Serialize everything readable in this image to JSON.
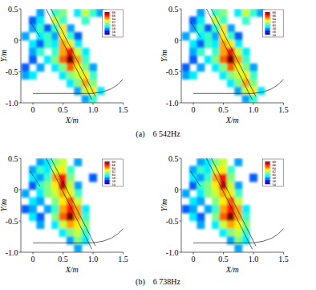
{
  "chart_data": [
    {
      "type": "heatmap",
      "x_label": "X/m",
      "y_label": "Y/m",
      "xlim": [
        -0.2,
        1.5
      ],
      "ylim": [
        -1.0,
        0.5
      ],
      "xticks": [
        0,
        0.5,
        {
          "value": 1.0,
          "label": "1.0"
        },
        1.5
      ],
      "yticks": [
        0.5,
        0,
        -0.5,
        {
          "value": -1.0,
          "label": "-1.0"
        }
      ],
      "x": [
        -0.125,
        0,
        0.125,
        0.25,
        0.375,
        0.5,
        0.625,
        0.75,
        0.875,
        1.0,
        1.125,
        1.25,
        1.375
      ],
      "y": [
        0.4375,
        0.3125,
        0.1875,
        0.0625,
        -0.0625,
        -0.1875,
        -0.3125,
        -0.4375,
        -0.5625,
        -0.6875,
        -0.8125,
        -0.9375
      ],
      "cells": [
        [
          null,
          null,
          58,
          null,
          60,
          61,
          null,
          59,
          62,
          60,
          58,
          null,
          null
        ],
        [
          null,
          57,
          59,
          null,
          62,
          60,
          null,
          null,
          60,
          null,
          null,
          null,
          null
        ],
        [
          null,
          58,
          60,
          57,
          60,
          63,
          58,
          null,
          null,
          null,
          null,
          null,
          null
        ],
        [
          58,
          null,
          59,
          60,
          58,
          63,
          60,
          57,
          null,
          null,
          null,
          null,
          null
        ],
        [
          null,
          59,
          57,
          60,
          59,
          64,
          63,
          59,
          null,
          null,
          null,
          null,
          null
        ],
        [
          null,
          58,
          60,
          null,
          60,
          64,
          66,
          62,
          59,
          null,
          null,
          null,
          null
        ],
        [
          null,
          57,
          null,
          59,
          61,
          65,
          68,
          64,
          60,
          null,
          null,
          null,
          null
        ],
        [
          57,
          null,
          58,
          null,
          59,
          61,
          65,
          63,
          61,
          58,
          null,
          null,
          null
        ],
        [
          58,
          59,
          null,
          null,
          null,
          59,
          61,
          62,
          63,
          60,
          null,
          null,
          null
        ],
        [
          null,
          null,
          null,
          null,
          null,
          null,
          59,
          61,
          64,
          61,
          null,
          null,
          null
        ],
        [
          null,
          null,
          null,
          null,
          null,
          null,
          null,
          58,
          62,
          63,
          59,
          null,
          null
        ],
        [
          null,
          null,
          null,
          null,
          null,
          null,
          null,
          null,
          58,
          60,
          null,
          null,
          null
        ]
      ],
      "colorbar": {
        "range": [
          54,
          68
        ],
        "ticks": [
          54,
          56,
          58,
          60,
          62,
          64,
          66,
          68
        ]
      }
    },
    {
      "type": "heatmap",
      "x_label": "X/m",
      "y_label": "Y/m",
      "xlim": [
        -0.2,
        1.5
      ],
      "ylim": [
        -1.0,
        0.5
      ],
      "xticks": [
        0,
        0.5,
        {
          "value": 1.0,
          "label": "1.0"
        },
        1.5
      ],
      "yticks": [
        0.5,
        0,
        -0.5,
        {
          "value": -1.0,
          "label": "-1.0"
        }
      ],
      "x": [
        -0.125,
        0,
        0.125,
        0.25,
        0.375,
        0.5,
        0.625,
        0.75,
        0.875,
        1.0,
        1.125,
        1.25,
        1.375
      ],
      "y": [
        0.4375,
        0.3125,
        0.1875,
        0.0625,
        -0.0625,
        -0.1875,
        -0.3125,
        -0.4375,
        -0.5625,
        -0.6875,
        -0.8125,
        -0.9375
      ],
      "cells": [
        [
          null,
          null,
          58,
          null,
          60,
          61,
          null,
          59,
          62,
          60,
          58,
          null,
          null
        ],
        [
          null,
          57,
          59,
          null,
          62,
          60,
          null,
          null,
          60,
          null,
          null,
          null,
          null
        ],
        [
          null,
          58,
          60,
          57,
          60,
          63,
          58,
          null,
          null,
          null,
          null,
          null,
          null
        ],
        [
          58,
          null,
          59,
          60,
          58,
          63,
          60,
          57,
          null,
          null,
          null,
          null,
          null
        ],
        [
          null,
          59,
          57,
          60,
          59,
          64,
          63,
          59,
          null,
          null,
          null,
          null,
          null
        ],
        [
          null,
          58,
          60,
          null,
          60,
          64,
          66,
          62,
          59,
          null,
          null,
          null,
          null
        ],
        [
          null,
          57,
          null,
          59,
          61,
          65,
          68,
          64,
          60,
          null,
          null,
          null,
          null
        ],
        [
          57,
          null,
          58,
          null,
          59,
          61,
          65,
          63,
          61,
          58,
          null,
          null,
          null
        ],
        [
          58,
          59,
          null,
          null,
          null,
          59,
          61,
          62,
          63,
          60,
          null,
          null,
          null
        ],
        [
          null,
          null,
          null,
          null,
          null,
          null,
          59,
          61,
          64,
          61,
          null,
          null,
          null
        ],
        [
          null,
          null,
          null,
          null,
          null,
          null,
          null,
          58,
          62,
          63,
          59,
          null,
          null
        ],
        [
          null,
          null,
          null,
          null,
          null,
          null,
          null,
          null,
          58,
          60,
          null,
          null,
          null
        ]
      ],
      "colorbar": {
        "range": [
          54,
          68
        ],
        "ticks": [
          54,
          56,
          58,
          60,
          62,
          64,
          66,
          68
        ]
      }
    },
    {
      "type": "heatmap",
      "x_label": "X/m",
      "y_label": "Y/m",
      "xlim": [
        -0.2,
        1.5
      ],
      "ylim": [
        -1.0,
        0.5
      ],
      "xticks": [
        0,
        0.5,
        {
          "value": 1.0,
          "label": "1.0"
        },
        1.5
      ],
      "yticks": [
        0.5,
        0,
        -0.5,
        {
          "value": -1.0,
          "label": "-1.0"
        }
      ],
      "x": [
        -0.125,
        0,
        0.125,
        0.25,
        0.375,
        0.5,
        0.625,
        0.75,
        0.875,
        1.0,
        1.125,
        1.25,
        1.375
      ],
      "y": [
        0.4375,
        0.3125,
        0.1875,
        0.0625,
        -0.0625,
        -0.1875,
        -0.3125,
        -0.4375,
        -0.5625,
        -0.6875,
        -0.8125,
        -0.9375
      ],
      "cells": [
        [
          null,
          null,
          58,
          59,
          61,
          62,
          null,
          58,
          null,
          null,
          null,
          null,
          null
        ],
        [
          null,
          58,
          60,
          59,
          62,
          63,
          60,
          null,
          null,
          null,
          null,
          null,
          null
        ],
        [
          null,
          59,
          58,
          60,
          64,
          66,
          61,
          null,
          null,
          57,
          null,
          null,
          null
        ],
        [
          null,
          57,
          60,
          61,
          63,
          67,
          62,
          58,
          null,
          null,
          null,
          null,
          null
        ],
        [
          58,
          null,
          59,
          61,
          62,
          64,
          63,
          60,
          null,
          null,
          null,
          null,
          null
        ],
        [
          null,
          59,
          58,
          null,
          61,
          63,
          65,
          62,
          null,
          null,
          null,
          null,
          null
        ],
        [
          57,
          58,
          null,
          58,
          60,
          64,
          66,
          64,
          59,
          null,
          null,
          null,
          null
        ],
        [
          null,
          59,
          57,
          null,
          61,
          65,
          68,
          64,
          60,
          null,
          null,
          null,
          null
        ],
        [
          null,
          null,
          58,
          null,
          59,
          62,
          64,
          63,
          61,
          null,
          null,
          null,
          null
        ],
        [
          null,
          null,
          null,
          null,
          null,
          59,
          61,
          62,
          60,
          null,
          null,
          null,
          null
        ],
        [
          null,
          null,
          null,
          null,
          null,
          null,
          58,
          61,
          59,
          null,
          null,
          null,
          null
        ],
        [
          null,
          null,
          null,
          null,
          null,
          null,
          null,
          58,
          null,
          null,
          null,
          null,
          null
        ]
      ],
      "colorbar": {
        "range": [
          54,
          68
        ],
        "ticks": [
          54,
          56,
          58,
          60,
          62,
          64,
          66,
          68
        ]
      }
    },
    {
      "type": "heatmap",
      "x_label": "X/m",
      "y_label": "Y/m",
      "xlim": [
        -0.2,
        1.5
      ],
      "ylim": [
        -1.0,
        0.5
      ],
      "xticks": [
        0,
        0.5,
        {
          "value": 1.0,
          "label": "1.0"
        },
        1.5
      ],
      "yticks": [
        0.5,
        0,
        -0.5,
        {
          "value": -1.0,
          "label": "-1.0"
        }
      ],
      "x": [
        -0.125,
        0,
        0.125,
        0.25,
        0.375,
        0.5,
        0.625,
        0.75,
        0.875,
        1.0,
        1.125,
        1.25,
        1.375
      ],
      "y": [
        0.4375,
        0.3125,
        0.1875,
        0.0625,
        -0.0625,
        -0.1875,
        -0.3125,
        -0.4375,
        -0.5625,
        -0.6875,
        -0.8125,
        -0.9375
      ],
      "cells": [
        [
          null,
          null,
          58,
          59,
          61,
          62,
          null,
          58,
          null,
          null,
          null,
          null,
          null
        ],
        [
          null,
          58,
          60,
          59,
          62,
          63,
          60,
          null,
          null,
          null,
          null,
          null,
          null
        ],
        [
          null,
          59,
          58,
          60,
          64,
          66,
          61,
          null,
          null,
          57,
          null,
          null,
          null
        ],
        [
          null,
          57,
          60,
          61,
          63,
          67,
          62,
          58,
          null,
          null,
          null,
          null,
          null
        ],
        [
          58,
          null,
          59,
          61,
          62,
          64,
          63,
          60,
          null,
          null,
          null,
          null,
          null
        ],
        [
          null,
          59,
          58,
          null,
          61,
          63,
          65,
          62,
          null,
          null,
          null,
          null,
          null
        ],
        [
          57,
          58,
          null,
          58,
          60,
          64,
          66,
          64,
          59,
          null,
          null,
          null,
          null
        ],
        [
          null,
          59,
          57,
          null,
          61,
          65,
          68,
          64,
          60,
          null,
          null,
          null,
          null
        ],
        [
          null,
          null,
          58,
          null,
          59,
          62,
          64,
          63,
          61,
          null,
          null,
          null,
          null
        ],
        [
          null,
          null,
          null,
          null,
          null,
          59,
          61,
          62,
          60,
          null,
          null,
          null,
          null
        ],
        [
          null,
          null,
          null,
          null,
          null,
          null,
          58,
          61,
          59,
          null,
          null,
          null,
          null
        ],
        [
          null,
          null,
          null,
          null,
          null,
          null,
          null,
          58,
          null,
          null,
          null,
          null,
          null
        ]
      ],
      "colorbar": {
        "range": [
          54,
          68
        ],
        "ticks": [
          54,
          56,
          58,
          60,
          62,
          64,
          66,
          68
        ]
      }
    }
  ],
  "captions": [
    "(a)　6 542Hz",
    "(b)　6 738Hz"
  ]
}
